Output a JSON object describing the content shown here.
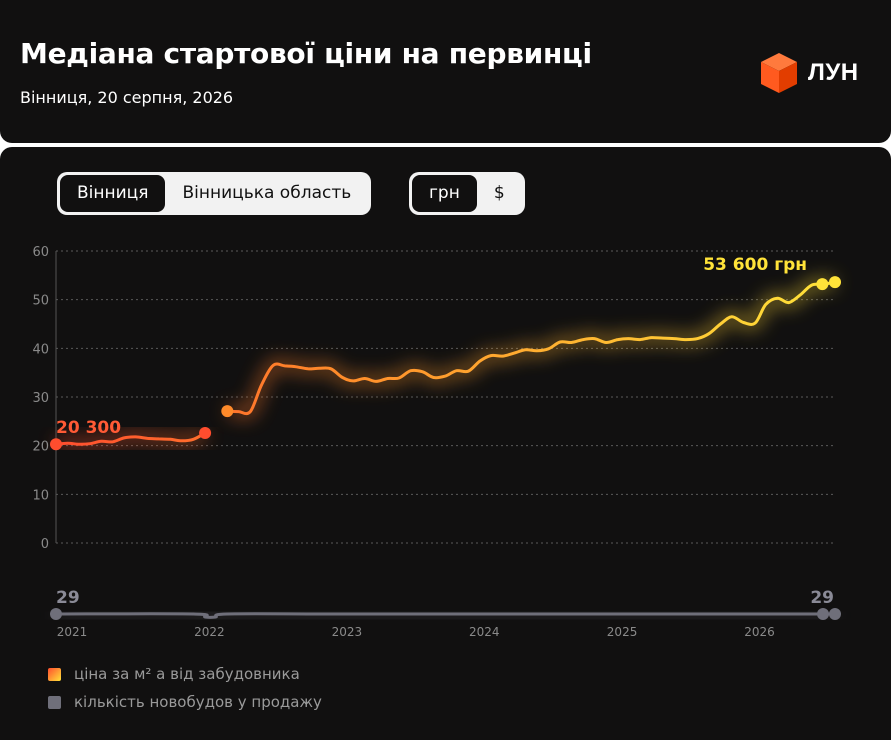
{
  "header": {
    "title": "Медіана стартової ціни на первинці",
    "subtitle": "Вінниця, 20 серпня, 2026",
    "logo_text": "ЛУН"
  },
  "location_toggle": {
    "options": [
      "Вінниця",
      "Вінницька область"
    ],
    "selected": "Вінниця"
  },
  "currency_toggle": {
    "options": [
      "грн",
      "$"
    ],
    "selected": "грн"
  },
  "colors": {
    "background": "#111010",
    "price_start": "#ff4d2e",
    "price_mid": "#ff8a2a",
    "price_end": "#ffe339",
    "count_line": "#6f6f7a",
    "grid": "#5a5a5a"
  },
  "chart_data": {
    "type": "line",
    "title": "Медіана стартової ціни на первинці",
    "ylim": [
      0,
      60
    ],
    "yticks": [
      "0",
      "10",
      "20",
      "30",
      "40",
      "50",
      "60"
    ],
    "xlim": [
      "2021-01-01",
      "2026-09-01"
    ],
    "xticks": [
      "2021",
      "2022",
      "2023",
      "2024",
      "2025",
      "2026"
    ],
    "grid": true,
    "units_note": "y in thousands of UAH per m²",
    "series": [
      {
        "name": "ціна за м² а від забудовника",
        "segments": [
          [
            [
              "2021-01-01",
              20.3
            ],
            [
              "2021-02-01",
              20.5
            ],
            [
              "2021-03-01",
              20.3
            ],
            [
              "2021-04-01",
              20.4
            ],
            [
              "2021-05-01",
              20.9
            ],
            [
              "2021-06-01",
              20.8
            ],
            [
              "2021-07-01",
              21.6
            ],
            [
              "2021-08-01",
              21.8
            ],
            [
              "2021-09-01",
              21.5
            ],
            [
              "2021-10-01",
              21.4
            ],
            [
              "2021-11-01",
              21.3
            ],
            [
              "2021-12-01",
              21.0
            ],
            [
              "2022-01-01",
              21.3
            ],
            [
              "2022-02-01",
              22.6
            ]
          ],
          [
            [
              "2022-04-01",
              27.1
            ],
            [
              "2022-05-01",
              27.0
            ],
            [
              "2022-06-01",
              27.0
            ],
            [
              "2022-07-01",
              32.5
            ],
            [
              "2022-08-01",
              36.5
            ],
            [
              "2022-09-01",
              36.4
            ],
            [
              "2022-10-01",
              36.2
            ],
            [
              "2022-11-01",
              35.8
            ],
            [
              "2022-12-01",
              35.9
            ],
            [
              "2023-01-01",
              35.8
            ],
            [
              "2023-02-01",
              34.0
            ],
            [
              "2023-03-01",
              33.3
            ],
            [
              "2023-04-01",
              33.8
            ],
            [
              "2023-05-01",
              33.2
            ],
            [
              "2023-06-01",
              33.8
            ],
            [
              "2023-07-01",
              33.9
            ],
            [
              "2023-08-01",
              35.4
            ],
            [
              "2023-09-01",
              35.2
            ],
            [
              "2023-10-01",
              34.0
            ],
            [
              "2023-11-01",
              34.3
            ],
            [
              "2023-12-01",
              35.4
            ],
            [
              "2024-01-01",
              35.3
            ],
            [
              "2024-02-01",
              37.4
            ],
            [
              "2024-03-01",
              38.5
            ],
            [
              "2024-04-01",
              38.4
            ],
            [
              "2024-05-01",
              39.0
            ],
            [
              "2024-06-01",
              39.7
            ],
            [
              "2024-07-01",
              39.5
            ],
            [
              "2024-08-01",
              39.9
            ],
            [
              "2024-09-01",
              41.3
            ],
            [
              "2024-10-01",
              41.2
            ],
            [
              "2024-11-01",
              41.8
            ],
            [
              "2024-12-01",
              42.0
            ],
            [
              "2025-01-01",
              41.2
            ],
            [
              "2025-02-01",
              41.8
            ],
            [
              "2025-03-01",
              42.0
            ],
            [
              "2025-04-01",
              41.8
            ],
            [
              "2025-05-01",
              42.2
            ],
            [
              "2025-06-01",
              42.1
            ],
            [
              "2025-07-01",
              42.0
            ],
            [
              "2025-08-01",
              41.8
            ],
            [
              "2025-09-01",
              42.0
            ],
            [
              "2025-10-01",
              43.0
            ],
            [
              "2025-11-01",
              45.0
            ],
            [
              "2025-12-01",
              46.5
            ],
            [
              "2026-01-01",
              45.3
            ],
            [
              "2026-02-01",
              45.2
            ],
            [
              "2026-03-01",
              49.0
            ],
            [
              "2026-04-01",
              50.3
            ],
            [
              "2026-05-01",
              49.4
            ],
            [
              "2026-06-01",
              51.0
            ],
            [
              "2026-07-01",
              53.0
            ],
            [
              "2026-08-01",
              53.2
            ],
            [
              "2026-09-01",
              53.6
            ]
          ]
        ]
      },
      {
        "name": "кількість новобудов у продажу",
        "values": [
          [
            "2021-01-01",
            29
          ],
          [
            "2022-01-01",
            29
          ],
          [
            "2022-02-01",
            28
          ],
          [
            "2022-03-01",
            28
          ],
          [
            "2022-04-01",
            29
          ],
          [
            "2023-01-01",
            29
          ],
          [
            "2024-01-01",
            29
          ],
          [
            "2025-01-01",
            29
          ],
          [
            "2026-01-01",
            29
          ],
          [
            "2026-09-01",
            29
          ]
        ]
      }
    ],
    "annotations": {
      "price_start": "20 300",
      "price_end": "53 600 грн",
      "count_start": "29",
      "count_end": "29"
    }
  },
  "legend": {
    "placement": "bottom-left",
    "items": [
      {
        "label": "ціна за м² а від забудовника",
        "color_from": "#ff4d2e",
        "color_to": "#ffe339"
      },
      {
        "label": "кількість новобудов у продажу",
        "color": "#6f6f7a"
      }
    ]
  }
}
